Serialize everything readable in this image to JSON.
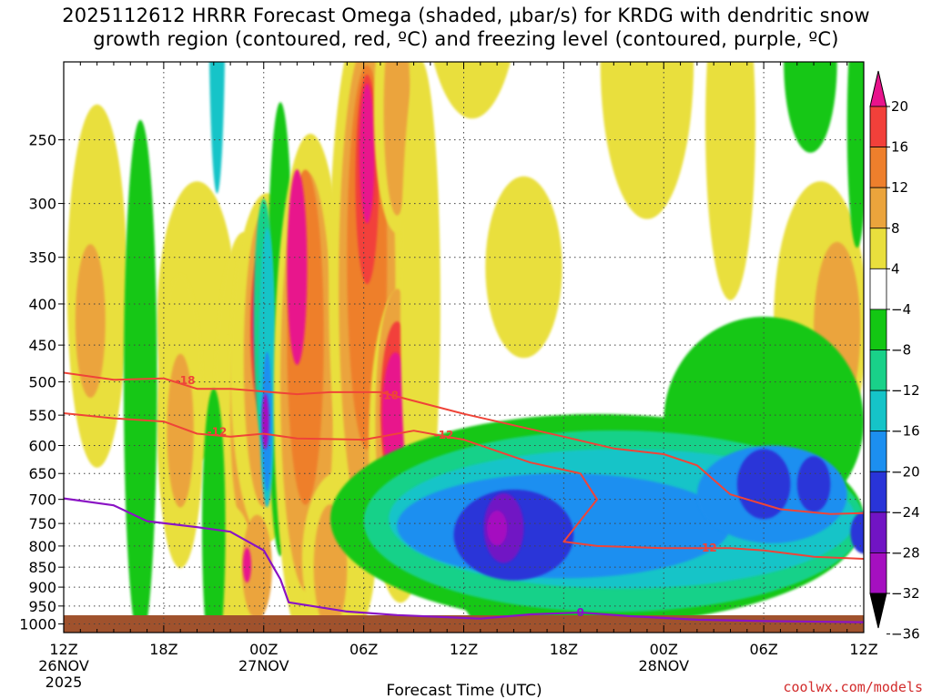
{
  "title": {
    "line1": "2025112612 HRRR Forecast Omega (shaded, μbar/s) for KRDG with dendritic snow",
    "line2": "growth region (contoured, red, ºC) and freezing level (contoured, purple, ºC)"
  },
  "chart_data": {
    "type": "heatmap",
    "quantity": "Omega",
    "units": "μbar/s",
    "xlabel": "Forecast Time (UTC)",
    "x_ticks": [
      {
        "label": "12Z",
        "sub": "26NOV",
        "sub2": "2025",
        "hour": 0
      },
      {
        "label": "18Z",
        "hour": 6
      },
      {
        "label": "00Z",
        "sub": "27NOV",
        "hour": 12
      },
      {
        "label": "06Z",
        "hour": 18
      },
      {
        "label": "12Z",
        "hour": 24
      },
      {
        "label": "18Z",
        "hour": 30
      },
      {
        "label": "00Z",
        "sub": "28NOV",
        "hour": 36
      },
      {
        "label": "06Z",
        "hour": 42
      },
      {
        "label": "12Z",
        "hour": 48
      }
    ],
    "xlim": [
      0,
      48
    ],
    "ylabel": "",
    "y_ticks": [
      250,
      300,
      350,
      400,
      450,
      500,
      550,
      600,
      650,
      700,
      750,
      800,
      850,
      900,
      950,
      1000
    ],
    "ylim": [
      1025,
      200
    ],
    "y_scale": "log-pressure",
    "grid": true,
    "colorbar": {
      "levels": [
        -36,
        -32,
        -28,
        -24,
        -20,
        -16,
        -12,
        -8,
        -4,
        4,
        8,
        12,
        16,
        20
      ],
      "labels": [
        "20",
        "16",
        "12",
        "8",
        "4",
        "−4",
        "−8",
        "−12",
        "−16",
        "−20",
        "−24",
        "−28",
        "−32",
        "−36"
      ],
      "bands": [
        {
          "range": "> 20",
          "color": "#e8138c"
        },
        {
          "range": "16 to 20",
          "color": "#f2403a"
        },
        {
          "range": "12 to 16",
          "color": "#ee7f2c"
        },
        {
          "range": "8 to 12",
          "color": "#eba43c"
        },
        {
          "range": "4 to 8",
          "color": "#e9df3d"
        },
        {
          "range": "-4 to 4",
          "color": "#ffffff"
        },
        {
          "range": "-8 to -4",
          "color": "#13c713"
        },
        {
          "range": "-12 to -8",
          "color": "#19d189"
        },
        {
          "range": "-16 to -12",
          "color": "#15c4c8"
        },
        {
          "range": "-20 to -16",
          "color": "#1c8ff0"
        },
        {
          "range": "-24 to -20",
          "color": "#2934d8"
        },
        {
          "range": "-28 to -24",
          "color": "#7114c4"
        },
        {
          "range": "-32 to -28",
          "color": "#a50fc0"
        },
        {
          "range": "< -32",
          "color": "#a6a6a6"
        }
      ]
    },
    "contours": {
      "dendritic_red": {
        "color": "#ef4438",
        "lines": [
          {
            "label": "-18",
            "points": [
              [
                0,
                487
              ],
              [
                3,
                497
              ],
              [
                6,
                495
              ],
              [
                8,
                510
              ],
              [
                10,
                510
              ],
              [
                14,
                518
              ],
              [
                16,
                515
              ],
              [
                19,
                515
              ],
              [
                24,
                548
              ],
              [
                30,
                585
              ],
              [
                33,
                605
              ],
              [
                36,
                615
              ],
              [
                38,
                635
              ],
              [
                40,
                690
              ],
              [
                43,
                720
              ],
              [
                46,
                730
              ],
              [
                48,
                728
              ]
            ]
          },
          {
            "label": "-12",
            "points": [
              [
                0,
                547
              ],
              [
                3,
                555
              ],
              [
                6,
                560
              ],
              [
                8,
                580
              ],
              [
                10,
                585
              ],
              [
                12,
                580
              ],
              [
                14,
                588
              ],
              [
                18,
                590
              ],
              [
                21,
                575
              ],
              [
                24,
                590
              ],
              [
                28,
                630
              ],
              [
                31,
                650
              ],
              [
                32,
                700
              ],
              [
                30,
                790
              ],
              [
                32,
                800
              ],
              [
                36,
                805
              ],
              [
                40,
                805
              ],
              [
                42,
                810
              ],
              [
                45,
                825
              ],
              [
                48,
                830
              ]
            ]
          }
        ],
        "labels": [
          {
            "text": "-18",
            "hour": 7.3,
            "p": 498
          },
          {
            "text": "-18",
            "hour": 19.5,
            "p": 520
          },
          {
            "text": "-12",
            "hour": 9.2,
            "p": 577
          },
          {
            "text": "-12",
            "hour": 22.8,
            "p": 582
          },
          {
            "text": "-12",
            "hour": 38.6,
            "p": 804
          }
        ]
      },
      "freezing_purple": {
        "color": "#8a13c4",
        "points": [
          [
            0,
            698
          ],
          [
            3,
            712
          ],
          [
            5,
            745
          ],
          [
            8,
            758
          ],
          [
            10,
            768
          ],
          [
            12,
            810
          ],
          [
            13,
            880
          ],
          [
            13.5,
            940
          ],
          [
            17,
            965
          ],
          [
            20,
            975
          ],
          [
            25,
            985
          ],
          [
            28,
            973
          ],
          [
            31,
            968
          ],
          [
            34,
            978
          ],
          [
            38,
            988
          ],
          [
            42,
            992
          ],
          [
            48,
            995
          ]
        ],
        "label": {
          "text": "0",
          "hour": 31,
          "p": 968
        }
      }
    }
  },
  "watermark": "coolwx.com/models"
}
